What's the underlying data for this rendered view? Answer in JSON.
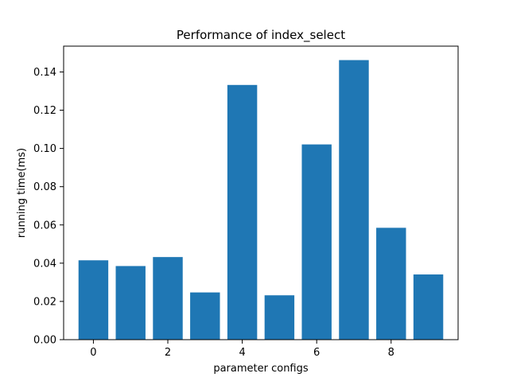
{
  "chart_data": {
    "type": "bar",
    "title": "Performance of index_select",
    "xlabel": "parameter configs",
    "ylabel": "running time(ms)",
    "categories": [
      0,
      1,
      2,
      3,
      4,
      5,
      6,
      7,
      8,
      9
    ],
    "values": [
      0.0415,
      0.0385,
      0.0432,
      0.0247,
      0.1332,
      0.0232,
      0.1021,
      0.1462,
      0.0585,
      0.0341
    ],
    "xlim": [
      -0.8,
      9.8
    ],
    "ylim": [
      0,
      0.1535
    ],
    "xticks": [
      0,
      2,
      4,
      6,
      8
    ],
    "xtick_labels": [
      "0",
      "2",
      "4",
      "6",
      "8"
    ],
    "yticks": [
      0.0,
      0.02,
      0.04,
      0.06,
      0.08,
      0.1,
      0.12,
      0.14
    ],
    "ytick_labels": [
      "0.00",
      "0.02",
      "0.04",
      "0.06",
      "0.08",
      "0.10",
      "0.12",
      "0.14"
    ],
    "bar_color": "#1f77b4",
    "grid": false
  }
}
